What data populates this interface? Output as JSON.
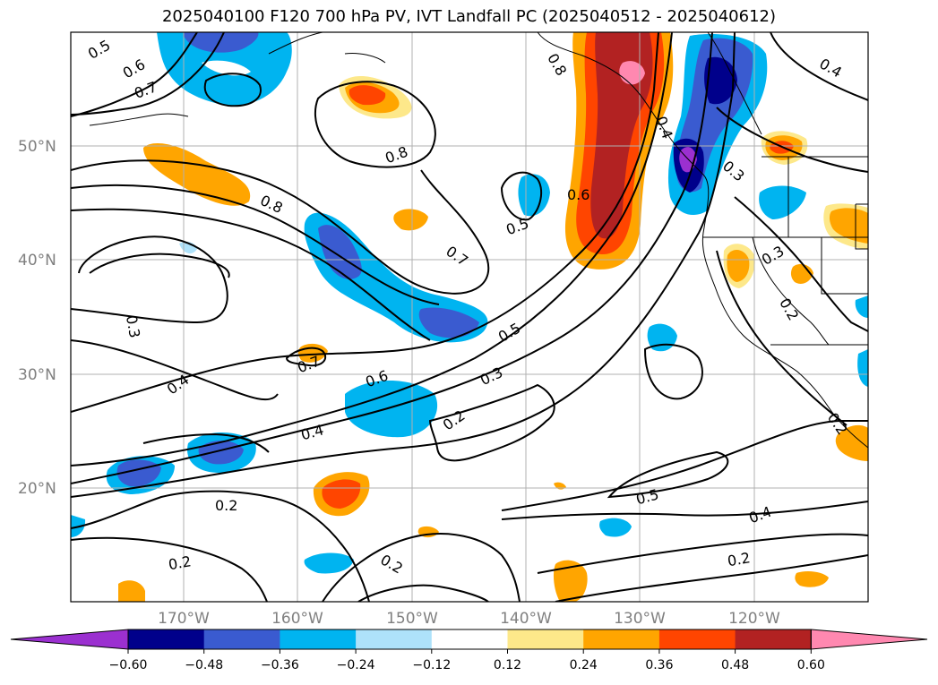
{
  "title": "2025040100 F120 700 hPa PV, IVT Landfall PC (2025040512 - 2025040612)",
  "axes": {
    "lat_labels": [
      "50°N",
      "40°N",
      "30°N",
      "20°N"
    ],
    "lon_labels": [
      "170°W",
      "160°W",
      "150°W",
      "140°W",
      "130°W",
      "120°W"
    ]
  },
  "contour_labels": [
    "0.5",
    "0.6",
    "0.7",
    "0.8",
    "0.8",
    "0.5",
    "0.6",
    "0.8",
    "0.7",
    "0.4",
    "0.3",
    "0.2",
    "0.3",
    "0.7",
    "0.4",
    "0.6",
    "0.5",
    "0.3",
    "0.2",
    "0.4",
    "0.2",
    "0.2",
    "0.2",
    "0.5",
    "0.4",
    "0.2",
    "0.3",
    "0.2",
    "0.4"
  ],
  "colorbar": {
    "ticks": [
      "−0.60",
      "−0.48",
      "−0.36",
      "−0.24",
      "−0.12",
      "0.12",
      "0.24",
      "0.36",
      "0.48",
      "0.60"
    ],
    "colors": [
      "#9b30d0",
      "#00008b",
      "#3a5bd0",
      "#00b4f0",
      "#aee2fa",
      "#ffffff",
      "#fde88a",
      "#ffa500",
      "#ff4500",
      "#b22222",
      "#ff88b0"
    ]
  }
}
